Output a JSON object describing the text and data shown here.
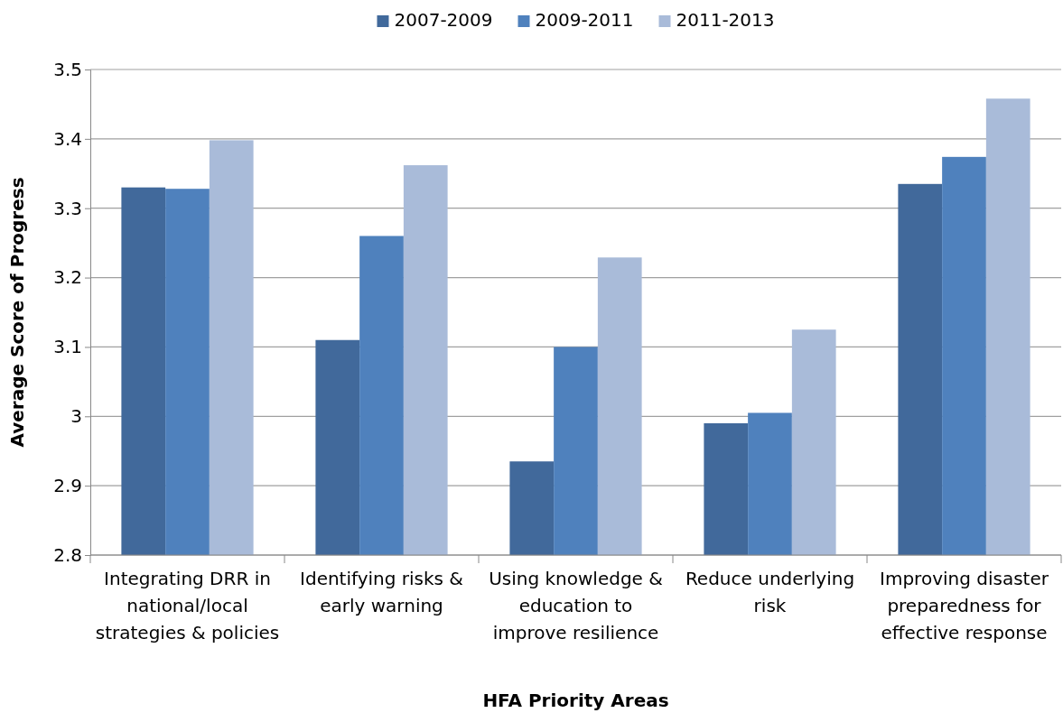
{
  "chart_data": {
    "type": "bar",
    "xlabel": "HFA Priority Areas",
    "ylabel": "Average Score of Progress",
    "categories": [
      "Integrating DRR in national/local strategies & policies",
      "Identifying risks & early warning",
      "Using knowledge & education to improve resilience",
      "Reduce underlying risk",
      "Improving disaster preparedness for effective response"
    ],
    "series": [
      {
        "name": "2007-2009",
        "color": "#41699b",
        "values": [
          3.33,
          3.11,
          2.935,
          2.99,
          3.335
        ]
      },
      {
        "name": "2009-2011",
        "color": "#4f81bd",
        "values": [
          3.328,
          3.26,
          3.1,
          3.005,
          3.374
        ]
      },
      {
        "name": "2011-2013",
        "color": "#a9bbd9",
        "values": [
          3.398,
          3.362,
          3.229,
          3.125,
          3.458
        ]
      }
    ],
    "ylim": [
      2.8,
      3.5
    ],
    "yticks": [
      {
        "value": 2.8,
        "label": "2.8"
      },
      {
        "value": 2.9,
        "label": "2.9"
      },
      3,
      {
        "value": 3.1,
        "label": "3.1"
      },
      {
        "value": 3.2,
        "label": "3.2"
      },
      {
        "value": 3.3,
        "label": "3.3"
      },
      {
        "value": 3.4,
        "label": "3.4"
      },
      {
        "value": 3.5,
        "label": "3.5"
      }
    ],
    "grid": "y",
    "legend": "top"
  }
}
